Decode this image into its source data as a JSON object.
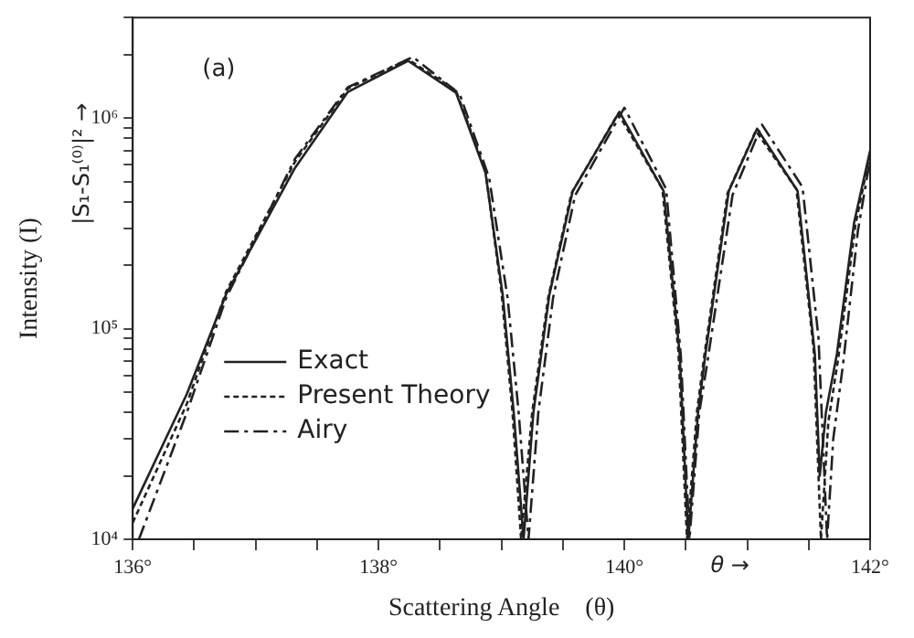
{
  "chart_data": {
    "type": "line",
    "xlabel": "Scattering Angle    (θ)",
    "ylabel": "Intensity (I)",
    "annotations": [
      "(a)",
      "|S₁-S₁⁽⁰⁾|² →",
      "θ →"
    ],
    "log": "y",
    "grid": false,
    "legend": "bottom left",
    "marker": "none",
    "xlim": [
      136,
      142
    ],
    "xticks": [
      {
        "value": 136,
        "label": "136°"
      },
      {
        "value": 136.5,
        "label": null
      },
      {
        "value": 137,
        "label": null
      },
      {
        "value": 137.5,
        "label": null
      },
      {
        "value": 138,
        "label": "138°"
      },
      {
        "value": 138.5,
        "label": null
      },
      {
        "value": 139,
        "label": null
      },
      {
        "value": 139.5,
        "label": null
      },
      {
        "value": 140,
        "label": "140°"
      },
      {
        "value": 140.5,
        "label": null
      },
      {
        "value": 141,
        "label": null
      },
      {
        "value": 141.5,
        "label": null
      },
      {
        "value": 142,
        "label": "142°"
      }
    ],
    "ylim": [
      10000,
      3000000
    ],
    "yticks": [
      {
        "value": 10000,
        "label": "10⁴"
      },
      {
        "value": 20000,
        "label": null
      },
      {
        "value": 30000,
        "label": null
      },
      {
        "value": 40000,
        "label": null
      },
      {
        "value": 50000,
        "label": null
      },
      {
        "value": 60000,
        "label": null
      },
      {
        "value": 70000,
        "label": null
      },
      {
        "value": 80000,
        "label": null
      },
      {
        "value": 90000,
        "label": null
      },
      {
        "value": 100000,
        "label": "10⁵"
      },
      {
        "value": 200000,
        "label": null
      },
      {
        "value": 300000,
        "label": null
      },
      {
        "value": 400000,
        "label": null
      },
      {
        "value": 500000,
        "label": null
      },
      {
        "value": 600000,
        "label": null
      },
      {
        "value": 700000,
        "label": null
      },
      {
        "value": 800000,
        "label": null
      },
      {
        "value": 900000,
        "label": null
      },
      {
        "value": 1000000,
        "label": "10⁶"
      },
      {
        "value": 2000000,
        "label": null
      },
      {
        "value": 3000000,
        "label": null
      }
    ],
    "series": [
      {
        "name": "Exact",
        "color": "#222222",
        "line_style": "solid",
        "x": [
          136.0,
          136.44,
          136.76,
          137.32,
          137.75,
          138.24,
          138.63,
          138.87,
          139.01,
          139.1,
          139.18,
          139.26,
          139.39,
          139.58,
          139.96,
          140.32,
          140.45,
          140.52,
          140.6,
          140.66,
          140.85,
          141.08,
          141.41,
          141.55,
          141.59,
          141.64,
          141.73,
          141.87,
          142.0
        ],
        "values": [
          14000,
          49000,
          146000,
          580000,
          1330000,
          1870000,
          1320000,
          550000,
          145000,
          40000,
          10000,
          40000,
          145000,
          450000,
          1070000,
          450000,
          76000,
          10000,
          40000,
          76000,
          450000,
          890000,
          450000,
          76000,
          20000,
          40000,
          76000,
          320000,
          700000
        ]
      },
      {
        "name": "Present Theory",
        "color": "#222222",
        "line_style": "dotted",
        "x": [
          136.0,
          136.44,
          136.76,
          137.32,
          137.75,
          138.24,
          138.63,
          138.87,
          139.0,
          139.09,
          139.16,
          139.25,
          139.38,
          139.57,
          139.95,
          140.31,
          140.44,
          140.51,
          140.59,
          140.65,
          140.84,
          141.07,
          141.4,
          141.54,
          141.6,
          141.66,
          141.74,
          141.88,
          142.0
        ],
        "values": [
          12000,
          44000,
          150000,
          620000,
          1380000,
          1900000,
          1350000,
          560000,
          150000,
          40000,
          10000,
          40000,
          140000,
          440000,
          1050000,
          460000,
          78000,
          10000,
          40000,
          74000,
          440000,
          870000,
          460000,
          80000,
          10000,
          36000,
          72000,
          310000,
          680000
        ]
      },
      {
        "name": "Airy",
        "color": "#222222",
        "line_style": "dashed",
        "x": [
          136.05,
          136.44,
          136.76,
          137.32,
          137.75,
          138.28,
          138.66,
          138.9,
          139.05,
          139.14,
          139.22,
          139.3,
          139.42,
          139.6,
          140.0,
          140.34,
          140.46,
          140.53,
          140.61,
          140.68,
          140.88,
          141.12,
          141.45,
          141.58,
          141.65,
          141.7,
          141.78,
          141.9,
          142.0
        ],
        "values": [
          10000,
          40000,
          140000,
          640000,
          1400000,
          1950000,
          1300000,
          520000,
          140000,
          40000,
          10000,
          40000,
          140000,
          430000,
          1120000,
          460000,
          74000,
          10000,
          40000,
          72000,
          430000,
          930000,
          470000,
          90000,
          10000,
          30000,
          68000,
          290000,
          640000
        ]
      }
    ]
  }
}
